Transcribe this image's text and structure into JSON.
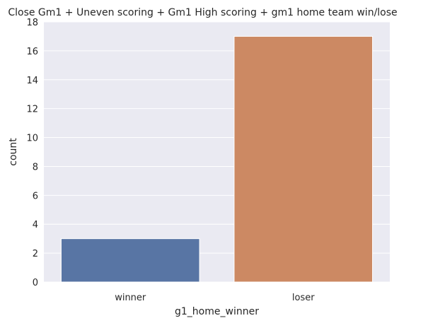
{
  "chart_data": {
    "type": "bar",
    "title": "Close Gm1 + Uneven scoring + Gm1 High scoring + gm1 home team win/lose",
    "xlabel": "g1_home_winner",
    "ylabel": "count",
    "categories": [
      "winner",
      "loser"
    ],
    "values": [
      3,
      17
    ],
    "colors": [
      "#5875a4",
      "#cc8963"
    ],
    "ylim": [
      0,
      18
    ],
    "yticks": [
      "0",
      "2",
      "4",
      "6",
      "8",
      "10",
      "12",
      "14",
      "16",
      "18"
    ],
    "grid": true,
    "background": "#eaeaf2"
  }
}
